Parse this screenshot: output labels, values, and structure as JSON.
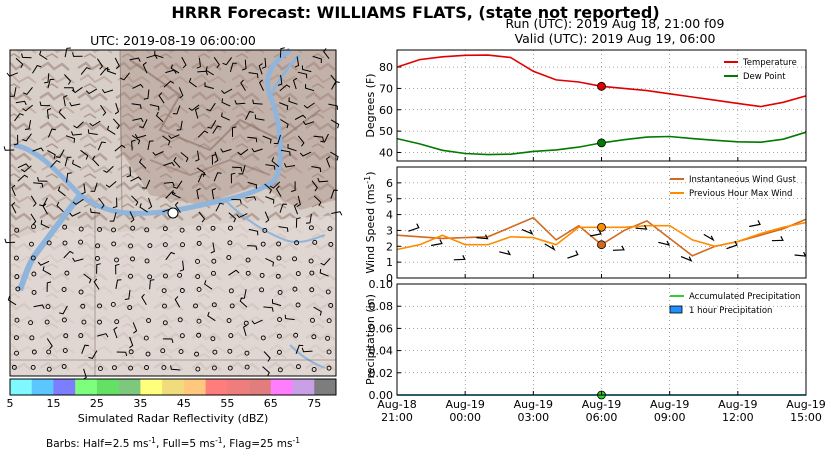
{
  "title": "HRRR Forecast: WILLIAMS FLATS, (state not reported)",
  "run_line": "Run (UTC): 2019 Aug 18, 21:00 f09",
  "valid_line": "Valid (UTC): 2019 Aug 19, 06:00",
  "map": {
    "title": "UTC: 2019-08-19 06:00:00",
    "colorbar_label": "Simulated Radar Reflectivity (dBZ)",
    "colorbar_ticks": [
      "5",
      "15",
      "25",
      "35",
      "45",
      "55",
      "65",
      "75"
    ],
    "colorbar_colors": [
      "#7df9ff",
      "#5cc6ff",
      "#7d7dff",
      "#7dff7d",
      "#64e164",
      "#7dc87d",
      "#ffff7d",
      "#f0dc7d",
      "#ffc87d",
      "#ff7d7d",
      "#f07d7d",
      "#e17d7d",
      "#ff7dff",
      "#c8a0e6",
      "#7d7d7d"
    ],
    "barbs_note_prefix": "Barbs: Half=2.5 ms",
    "barbs_note_mid1": ", Full=5 ms",
    "barbs_note_mid2": ", Flag=25 ms",
    "barbs_note_sup": "-1"
  },
  "chart_data": [
    {
      "type": "line",
      "ylabel": "Degrees (F)",
      "ylim": [
        36,
        88
      ],
      "yticks": [
        40,
        50,
        60,
        70,
        80
      ],
      "x_hours": [
        0,
        1,
        2,
        3,
        4,
        5,
        6,
        7,
        8,
        9,
        10,
        11,
        12,
        13,
        14,
        15,
        16,
        17,
        18
      ],
      "series": [
        {
          "name": "Temperature",
          "color": "#e00000",
          "values": [
            80,
            83.5,
            84.8,
            85.5,
            85.6,
            84.5,
            78,
            74,
            73,
            71,
            70,
            69,
            67.5,
            66,
            64.5,
            63,
            61.5,
            63.5,
            66.5
          ]
        },
        {
          "name": "Dew Point",
          "color": "#007a00",
          "values": [
            46.5,
            44,
            41,
            39.5,
            39,
            39.2,
            40.5,
            41.2,
            42.5,
            44.5,
            46,
            47.2,
            47.5,
            46.5,
            45.7,
            45,
            44.8,
            46.2,
            49.5
          ]
        }
      ],
      "markers": [
        {
          "hour": 9,
          "value": 71,
          "color": "#e00000"
        },
        {
          "hour": 9,
          "value": 44.5,
          "color": "#007a00"
        }
      ],
      "legend": "top-right",
      "grid": true
    },
    {
      "type": "line",
      "ylabel": "Wind Speed (ms",
      "ylabel_sup": "-1",
      "ylabel_end": ")",
      "ylim": [
        0,
        7
      ],
      "yticks": [
        0,
        1,
        2,
        3,
        4,
        5,
        6
      ],
      "x_hours": [
        0,
        1,
        2,
        3,
        4,
        5,
        6,
        7,
        8,
        9,
        10,
        11,
        12,
        13,
        14,
        15,
        16,
        17,
        18
      ],
      "series": [
        {
          "name": "Instantaneous Wind Gust",
          "color": "#d2691e",
          "values": [
            2.7,
            2.6,
            2.5,
            2.55,
            2.6,
            3.2,
            3.8,
            2.4,
            3.3,
            2.1,
            3.0,
            3.6,
            2.5,
            1.4,
            2.0,
            2.3,
            2.7,
            3.1,
            3.7
          ]
        },
        {
          "name": "Previous Hour Max Wind",
          "color": "#ff8c00",
          "values": [
            1.8,
            2.1,
            2.7,
            2.1,
            2.1,
            2.6,
            2.55,
            2.1,
            3.2,
            3.2,
            3.2,
            3.3,
            3.3,
            2.4,
            2.0,
            2.3,
            2.8,
            3.2,
            3.5
          ]
        }
      ],
      "markers": [
        {
          "hour": 9,
          "value": 2.1,
          "color": "#d2691e"
        },
        {
          "hour": 9,
          "value": 3.2,
          "color": "#ff8c00"
        }
      ],
      "legend": "top-right",
      "grid": true
    },
    {
      "type": "line",
      "ylabel": "Precipitation (in)",
      "ylim": [
        0,
        0.1
      ],
      "yticks": [
        "0.00",
        "0.02",
        "0.04",
        "0.06",
        "0.08",
        "0.10"
      ],
      "x_hours": [
        0,
        18
      ],
      "series": [
        {
          "name": "Accumulated Precipitation",
          "color": "#32cd32",
          "values": [
            0,
            0
          ]
        },
        {
          "name": "1 hour Precipitation",
          "color": "#1e90ff",
          "values": [
            0,
            0
          ]
        }
      ],
      "markers": [
        {
          "hour": 9,
          "value": 0,
          "color": "#32cd32"
        }
      ],
      "legend": "top-right",
      "grid": true
    }
  ],
  "x_tick_labels": [
    {
      "hour": 0,
      "line1": "Aug-18",
      "line2": "21:00"
    },
    {
      "hour": 3,
      "line1": "Aug-19",
      "line2": "00:00"
    },
    {
      "hour": 6,
      "line1": "Aug-19",
      "line2": "03:00"
    },
    {
      "hour": 9,
      "line1": "Aug-19",
      "line2": "06:00"
    },
    {
      "hour": 12,
      "line1": "Aug-19",
      "line2": "09:00"
    },
    {
      "hour": 15,
      "line1": "Aug-19",
      "line2": "12:00"
    },
    {
      "hour": 18,
      "line1": "Aug-19",
      "line2": "15:00"
    }
  ]
}
